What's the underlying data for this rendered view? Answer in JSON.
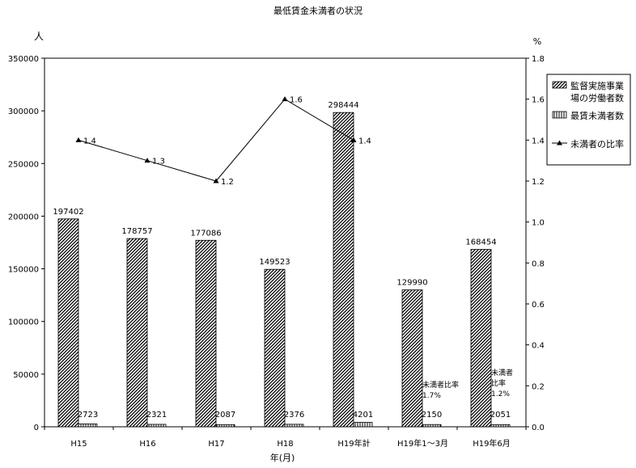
{
  "chart_data": {
    "type": "bar",
    "title": "最低賃金未満者の状況",
    "xlabel": "年(月)",
    "ylabel": "人",
    "ylabel_right": "%",
    "categories": [
      "H15",
      "H16",
      "H17",
      "H18",
      "H19年計",
      "H19年1～3月",
      "H19年6月"
    ],
    "ylim": [
      0,
      350000
    ],
    "yticks": [
      "0",
      "50000",
      "100000",
      "150000",
      "200000",
      "250000",
      "300000",
      "350000"
    ],
    "ylim_right": [
      0,
      1.8
    ],
    "yticks_right": [
      "0.0",
      "0.2",
      "0.4",
      "0.6",
      "0.8",
      "1.0",
      "1.2",
      "1.4",
      "1.6",
      "1.8"
    ],
    "series": [
      {
        "name": "監督実施事業場の労働者数",
        "name_lines": [
          "監督実施事業",
          "場の労働者数"
        ],
        "values": [
          197402,
          178757,
          177086,
          149523,
          298444,
          129990,
          168454
        ],
        "axis": "left",
        "color": "#000000"
      },
      {
        "name": "最賃未満者数",
        "values": [
          2723,
          2321,
          2087,
          2376,
          4201,
          2150,
          2051
        ],
        "axis": "left",
        "color": "#000000"
      },
      {
        "name": "未満者の比率",
        "values": [
          1.4,
          1.3,
          1.2,
          1.6,
          1.4,
          null,
          null
        ],
        "axis": "right",
        "color": "#000000"
      }
    ],
    "annotations": [
      {
        "category": "H19年1～3月",
        "lines": [
          "未満者比率",
          "1.7%"
        ]
      },
      {
        "category": "H19年6月",
        "lines": [
          "未満者",
          "比率",
          "1.2%"
        ]
      }
    ],
    "legend_position": "right",
    "grid": false
  }
}
